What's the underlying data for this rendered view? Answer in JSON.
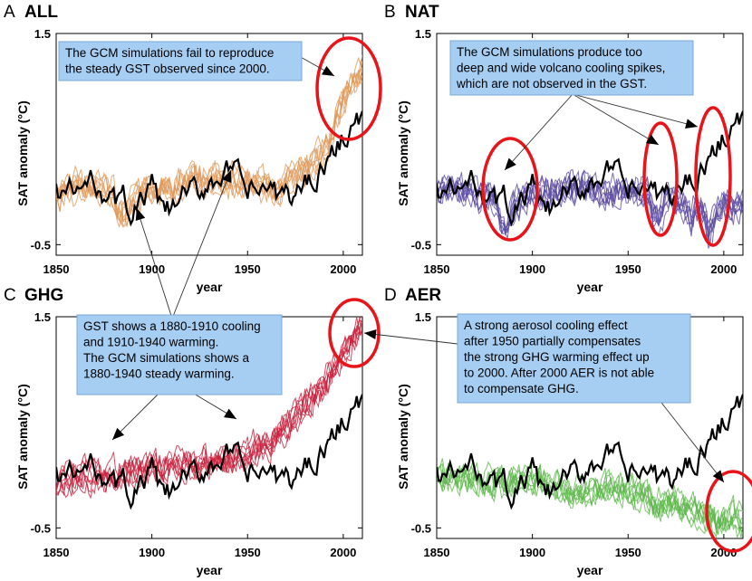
{
  "chart_data": [
    {
      "type": "line",
      "panel_letter": "A",
      "title": "ALL",
      "xlabel": "year",
      "ylabel": "SAT anomaly (°C)",
      "xlim": [
        1850,
        2010
      ],
      "ylim": [
        -0.6,
        1.5
      ],
      "xticks": [
        1850,
        1900,
        1950,
        2000
      ],
      "yticks": [
        -0.5,
        1.5
      ],
      "ytick_labels": [
        "-0.5",
        "1.5"
      ],
      "series": [
        {
          "role": "observed",
          "color": "#000000",
          "x": [
            1850,
            1860,
            1870,
            1875,
            1880,
            1885,
            1890,
            1895,
            1900,
            1905,
            1910,
            1915,
            1920,
            1925,
            1930,
            1935,
            1940,
            1945,
            1950,
            1955,
            1960,
            1965,
            1970,
            1975,
            1980,
            1985,
            1990,
            1995,
            2000,
            2005,
            2010
          ],
          "values": [
            0.0,
            0.0,
            0.1,
            0.0,
            -0.1,
            -0.05,
            -0.2,
            -0.1,
            0.05,
            -0.15,
            -0.2,
            -0.05,
            0.0,
            0.0,
            0.1,
            0.15,
            0.2,
            0.15,
            0.0,
            0.0,
            0.05,
            -0.05,
            0.0,
            -0.05,
            0.1,
            0.15,
            0.25,
            0.35,
            0.55,
            0.6,
            0.7
          ]
        },
        {
          "role": "simulation-mean",
          "color": "#e0985a",
          "x": [
            1850,
            1860,
            1870,
            1880,
            1885,
            1890,
            1895,
            1900,
            1910,
            1920,
            1930,
            1940,
            1950,
            1960,
            1965,
            1970,
            1980,
            1990,
            1995,
            2000,
            2005,
            2010
          ],
          "values": [
            0.0,
            0.05,
            0.05,
            0.0,
            -0.2,
            -0.05,
            0.0,
            0.0,
            0.05,
            0.1,
            0.1,
            0.1,
            0.1,
            0.05,
            -0.05,
            0.1,
            0.2,
            0.4,
            0.6,
            0.85,
            1.05,
            1.15
          ]
        }
      ]
    },
    {
      "type": "line",
      "panel_letter": "B",
      "title": "NAT",
      "xlabel": "year",
      "ylabel": "SAT anomaly (°C)",
      "xlim": [
        1850,
        2010
      ],
      "ylim": [
        -0.6,
        1.5
      ],
      "xticks": [
        1850,
        1900,
        1950,
        2000
      ],
      "yticks": [
        -0.5,
        1.5
      ],
      "ytick_labels": [
        "-0.5",
        "1.5"
      ],
      "series": [
        {
          "role": "observed",
          "color": "#000000",
          "x": [
            1850,
            1860,
            1870,
            1875,
            1880,
            1885,
            1890,
            1895,
            1900,
            1905,
            1910,
            1915,
            1920,
            1925,
            1930,
            1935,
            1940,
            1945,
            1950,
            1955,
            1960,
            1965,
            1970,
            1975,
            1980,
            1985,
            1990,
            1995,
            2000,
            2005,
            2010
          ],
          "values": [
            0.0,
            0.0,
            0.1,
            0.0,
            -0.1,
            -0.05,
            -0.2,
            -0.1,
            0.05,
            -0.15,
            -0.2,
            -0.05,
            0.0,
            0.0,
            0.1,
            0.15,
            0.2,
            0.15,
            0.0,
            0.0,
            0.05,
            -0.05,
            0.0,
            -0.05,
            0.1,
            0.15,
            0.25,
            0.35,
            0.55,
            0.6,
            0.7
          ]
        },
        {
          "role": "simulation-mean",
          "color": "#5a4aa0",
          "x": [
            1850,
            1860,
            1870,
            1880,
            1883,
            1886,
            1890,
            1895,
            1900,
            1910,
            1920,
            1930,
            1940,
            1950,
            1960,
            1963,
            1966,
            1970,
            1975,
            1980,
            1983,
            1985,
            1990,
            1992,
            1995,
            2000,
            2005,
            2010
          ],
          "values": [
            0.0,
            0.05,
            0.0,
            -0.05,
            -0.3,
            -0.45,
            -0.15,
            -0.05,
            0.0,
            0.0,
            0.05,
            0.0,
            0.0,
            0.0,
            0.0,
            -0.2,
            -0.3,
            -0.05,
            -0.1,
            -0.15,
            -0.3,
            -0.15,
            -0.2,
            -0.4,
            -0.25,
            -0.1,
            -0.15,
            -0.15
          ]
        }
      ]
    },
    {
      "type": "line",
      "panel_letter": "C",
      "title": "GHG",
      "xlabel": "year",
      "ylabel": "SAT anomaly (°C)",
      "xlim": [
        1850,
        2010
      ],
      "ylim": [
        -0.6,
        1.5
      ],
      "xticks": [
        1850,
        1900,
        1950,
        2000
      ],
      "yticks": [
        -0.5,
        1.5
      ],
      "ytick_labels": [
        "-0.5",
        "1.5"
      ],
      "series": [
        {
          "role": "observed",
          "color": "#000000",
          "x": [
            1850,
            1860,
            1870,
            1875,
            1880,
            1885,
            1890,
            1895,
            1900,
            1905,
            1910,
            1915,
            1920,
            1925,
            1930,
            1935,
            1940,
            1945,
            1950,
            1955,
            1960,
            1965,
            1970,
            1975,
            1980,
            1985,
            1990,
            1995,
            2000,
            2005,
            2010
          ],
          "values": [
            0.0,
            0.0,
            0.1,
            0.0,
            -0.1,
            -0.05,
            -0.2,
            -0.1,
            0.05,
            -0.15,
            -0.2,
            -0.05,
            0.0,
            0.0,
            0.1,
            0.15,
            0.2,
            0.15,
            0.0,
            0.0,
            0.05,
            -0.05,
            0.0,
            -0.05,
            0.1,
            0.15,
            0.25,
            0.35,
            0.55,
            0.6,
            0.7
          ]
        },
        {
          "role": "simulation-mean",
          "color": "#c8203c",
          "x": [
            1850,
            1860,
            1870,
            1880,
            1890,
            1900,
            1910,
            1920,
            1930,
            1940,
            1950,
            1960,
            1970,
            1980,
            1990,
            2000,
            2010
          ],
          "values": [
            -0.05,
            0.0,
            0.0,
            0.0,
            0.05,
            0.05,
            0.1,
            0.1,
            0.15,
            0.15,
            0.2,
            0.3,
            0.45,
            0.65,
            0.85,
            1.15,
            1.45
          ]
        }
      ]
    },
    {
      "type": "line",
      "panel_letter": "D",
      "title": "AER",
      "xlabel": "year",
      "ylabel": "SAT anomaly (°C)",
      "xlim": [
        1850,
        2010
      ],
      "ylim": [
        -0.6,
        1.5
      ],
      "xticks": [
        1850,
        1900,
        1950,
        2000
      ],
      "yticks": [
        -0.5,
        1.5
      ],
      "ytick_labels": [
        "-0.5",
        "1.5"
      ],
      "series": [
        {
          "role": "observed",
          "color": "#000000",
          "x": [
            1850,
            1860,
            1870,
            1875,
            1880,
            1885,
            1890,
            1895,
            1900,
            1905,
            1910,
            1915,
            1920,
            1925,
            1930,
            1935,
            1940,
            1945,
            1950,
            1955,
            1960,
            1965,
            1970,
            1975,
            1980,
            1985,
            1990,
            1995,
            2000,
            2005,
            2010
          ],
          "values": [
            0.0,
            0.0,
            0.1,
            0.0,
            -0.1,
            -0.05,
            -0.2,
            -0.1,
            0.05,
            -0.15,
            -0.2,
            -0.05,
            0.0,
            0.0,
            0.1,
            0.15,
            0.2,
            0.15,
            0.0,
            0.0,
            0.05,
            -0.05,
            0.0,
            -0.05,
            0.1,
            0.15,
            0.25,
            0.35,
            0.55,
            0.6,
            0.7
          ]
        },
        {
          "role": "simulation-mean",
          "color": "#5cb84a",
          "x": [
            1850,
            1860,
            1870,
            1880,
            1890,
            1900,
            1910,
            1920,
            1930,
            1940,
            1950,
            1960,
            1965,
            1970,
            1980,
            1990,
            2000,
            2005,
            2010
          ],
          "values": [
            0.0,
            -0.05,
            -0.05,
            -0.1,
            -0.05,
            -0.05,
            -0.1,
            -0.15,
            -0.15,
            -0.1,
            -0.15,
            -0.2,
            -0.3,
            -0.25,
            -0.3,
            -0.4,
            -0.45,
            -0.4,
            -0.45
          ]
        }
      ]
    }
  ],
  "annotations": {
    "A": [
      "The GCM simulations fail to reproduce",
      "the steady GST observed since 2000."
    ],
    "B": [
      "The GCM simulations produce too",
      "deep and wide volcano cooling spikes,",
      "which are not observed in the GST."
    ],
    "C": [
      "GST shows a 1880-1910 cooling",
      "and 1910-1940 warming.",
      "The GCM simulations shows a",
      "1880-1940 steady warming."
    ],
    "D": [
      "A strong aerosol cooling effect",
      "after 1950 partially compensates",
      "the strong GHG warming effect up",
      "to 2000. After 2000 AER is not able",
      "to compensate GHG."
    ]
  },
  "colors": {
    "highlight_ring": "#e8141a",
    "note_box": "#a6cdf2",
    "note_border": "#7aa8d8"
  }
}
